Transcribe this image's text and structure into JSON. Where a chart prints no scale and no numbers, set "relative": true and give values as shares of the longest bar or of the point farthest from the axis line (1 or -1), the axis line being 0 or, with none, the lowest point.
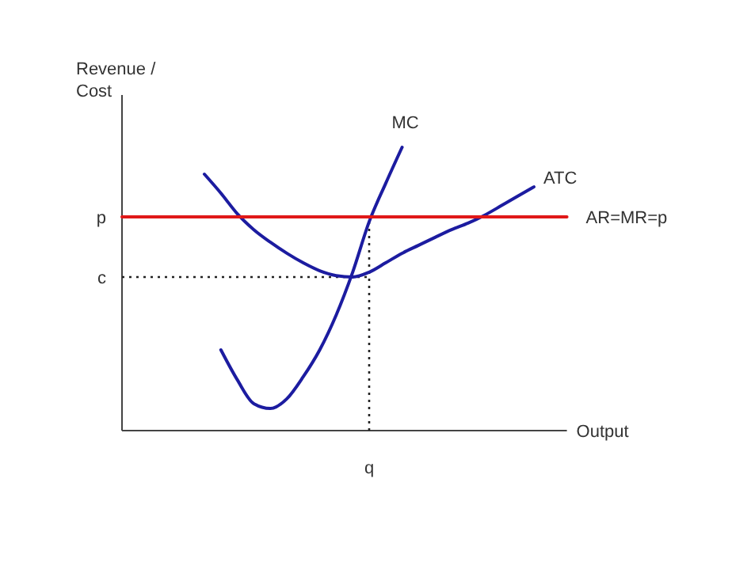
{
  "chart_data": {
    "type": "line",
    "relative": true,
    "xlabel": "Output",
    "ylabel": "Revenue / Cost",
    "categories": [
      null,
      null,
      null,
      null,
      null,
      null,
      null,
      null,
      null,
      null,
      null,
      null,
      null,
      null,
      null,
      null,
      null,
      null,
      null,
      null,
      null,
      null,
      null,
      null,
      null,
      null,
      null,
      null
    ],
    "annotations": [
      "p",
      "q"
    ],
    "ref_lines": [
      {
        "axis": "y",
        "value": 0.542,
        "label": "c",
        "line_style": "dotted",
        "color": "#222222"
      }
    ],
    "series": [
      {
        "name": "MC",
        "color": "#1c1ca0",
        "values": [
          null,
          null,
          null,
          null,
          null,
          null,
          0.285,
          0.179,
          0.095,
          0.078,
          0.112,
          0.19,
          0.285,
          0.408,
          0.559,
          0.737,
          0.872,
          1,
          null,
          null,
          null,
          null,
          null,
          null,
          null,
          null,
          null,
          null
        ]
      },
      {
        "name": "ATC",
        "color": "#1c1ca0",
        "values": [
          null,
          null,
          null,
          null,
          null,
          0.905,
          0.838,
          0.765,
          0.709,
          0.665,
          0.626,
          0.592,
          0.564,
          0.547,
          0.542,
          0.559,
          0.592,
          0.626,
          0.654,
          0.682,
          0.709,
          0.732,
          0.76,
          0.793,
          0.827,
          0.86,
          null,
          null
        ]
      },
      {
        "name": "AR=MR=p",
        "color": "#e01818",
        "values": [
          0.754,
          0.754,
          0.754,
          0.754,
          0.754,
          0.754,
          0.754,
          0.754,
          0.754,
          0.754,
          0.754,
          0.754,
          0.754,
          0.754,
          0.754,
          0.754,
          0.754,
          0.754,
          0.754,
          0.754,
          0.754,
          0.754,
          0.754,
          0.754,
          0.754,
          0.754,
          0.754,
          0.754
        ]
      }
    ]
  }
}
